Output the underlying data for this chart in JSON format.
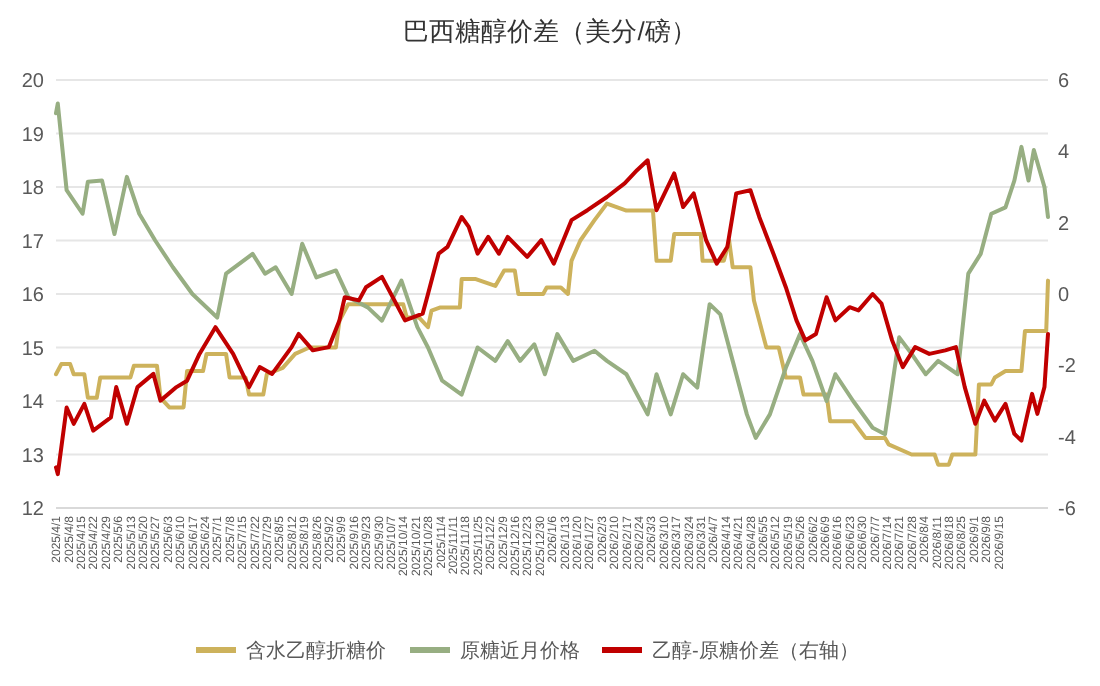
{
  "chart_data": {
    "type": "line",
    "title": "巴西糖醇价差（美分/磅）",
    "legend": "bottom",
    "grid": "y",
    "xlim": [
      "2025-04-01",
      "2026-10-13"
    ],
    "xticks": [
      {
        "value": "2025-04-01",
        "label": "2025/4/1"
      },
      {
        "value": "2025-04-08",
        "label": "2025/4/8"
      },
      {
        "value": "2025-04-15",
        "label": "2025/4/15"
      },
      {
        "value": "2025-04-22",
        "label": "2025/4/22"
      },
      {
        "value": "2025-04-29",
        "label": "2025/4/29"
      },
      {
        "value": "2025-05-06",
        "label": "2025/5/6"
      },
      {
        "value": "2025-05-13",
        "label": "2025/5/13"
      },
      {
        "value": "2025-05-20",
        "label": "2025/5/20"
      },
      {
        "value": "2025-05-27",
        "label": "2025/5/27"
      },
      {
        "value": "2025-06-03",
        "label": "2025/6/3"
      },
      {
        "value": "2025-06-10",
        "label": "2025/6/10"
      },
      {
        "value": "2025-06-17",
        "label": "2025/6/17"
      },
      {
        "value": "2025-06-24",
        "label": "2025/6/24"
      },
      {
        "value": "2025-07-01",
        "label": "2025/7/1"
      },
      {
        "value": "2025-07-08",
        "label": "2025/7/8"
      },
      {
        "value": "2025-07-15",
        "label": "2025/7/15"
      },
      {
        "value": "2025-07-22",
        "label": "2025/7/22"
      },
      {
        "value": "2025-07-29",
        "label": "2025/7/29"
      },
      {
        "value": "2025-08-05",
        "label": "2025/8/5"
      },
      {
        "value": "2025-08-12",
        "label": "2025/8/12"
      },
      {
        "value": "2025-08-19",
        "label": "2025/8/19"
      },
      {
        "value": "2025-08-26",
        "label": "2025/8/26"
      },
      {
        "value": "2025-09-02",
        "label": "2025/9/2"
      },
      {
        "value": "2025-09-09",
        "label": "2025/9/9"
      },
      {
        "value": "2025-09-16",
        "label": "2025/9/16"
      },
      {
        "value": "2025-09-23",
        "label": "2025/9/23"
      },
      {
        "value": "2025-09-30",
        "label": "2025/9/30"
      },
      {
        "value": "2025-10-07",
        "label": "2025/10/7"
      },
      {
        "value": "2025-10-14",
        "label": "2025/10/14"
      },
      {
        "value": "2025-10-21",
        "label": "2025/10/21"
      },
      {
        "value": "2025-10-28",
        "label": "2025/10/28"
      },
      {
        "value": "2025-11-04",
        "label": "2025/11/4"
      },
      {
        "value": "2025-11-11",
        "label": "2025/11/11"
      },
      {
        "value": "2025-11-18",
        "label": "2025/11/18"
      },
      {
        "value": "2025-11-25",
        "label": "2025/11/25"
      },
      {
        "value": "2025-12-02",
        "label": "2025/12/2"
      },
      {
        "value": "2025-12-09",
        "label": "2025/12/9"
      },
      {
        "value": "2025-12-16",
        "label": "2025/12/16"
      },
      {
        "value": "2025-12-23",
        "label": "2025/12/23"
      },
      {
        "value": "2025-12-30",
        "label": "2025/12/30"
      },
      {
        "value": "2026-01-06",
        "label": "2026/1/6"
      },
      {
        "value": "2026-01-13",
        "label": "2026/1/13"
      },
      {
        "value": "2026-01-20",
        "label": "2026/1/20"
      },
      {
        "value": "2026-01-27",
        "label": "2026/1/27"
      },
      {
        "value": "2026-02-03",
        "label": "2026/2/3"
      },
      {
        "value": "2026-02-10",
        "label": "2026/2/10"
      },
      {
        "value": "2026-02-17",
        "label": "2026/2/17"
      },
      {
        "value": "2026-02-24",
        "label": "2026/2/24"
      },
      {
        "value": "2026-03-03",
        "label": "2026/3/3"
      },
      {
        "value": "2026-03-10",
        "label": "2026/3/10"
      },
      {
        "value": "2026-03-17",
        "label": "2026/3/17"
      },
      {
        "value": "2026-03-24",
        "label": "2026/3/24"
      },
      {
        "value": "2026-03-31",
        "label": "2026/3/31"
      },
      {
        "value": "2026-04-07",
        "label": "2026/4/7"
      },
      {
        "value": "2026-04-14",
        "label": "2026/4/14"
      },
      {
        "value": "2026-04-21",
        "label": "2026/4/21"
      },
      {
        "value": "2026-04-28",
        "label": "2026/4/28"
      },
      {
        "value": "2026-05-05",
        "label": "2026/5/5"
      },
      {
        "value": "2026-05-12",
        "label": "2026/5/12"
      },
      {
        "value": "2026-05-19",
        "label": "2026/5/19"
      },
      {
        "value": "2026-05-26",
        "label": "2026/5/26"
      },
      {
        "value": "2026-06-02",
        "label": "2026/6/2"
      },
      {
        "value": "2026-06-09",
        "label": "2026/6/9"
      },
      {
        "value": "2026-06-16",
        "label": "2026/6/16"
      },
      {
        "value": "2026-06-23",
        "label": "2026/6/23"
      },
      {
        "value": "2026-06-30",
        "label": "2026/6/30"
      },
      {
        "value": "2026-07-07",
        "label": "2026/7/7"
      },
      {
        "value": "2026-07-14",
        "label": "2026/7/14"
      },
      {
        "value": "2026-07-21",
        "label": "2026/7/21"
      },
      {
        "value": "2026-07-28",
        "label": "2026/7/28"
      },
      {
        "value": "2026-08-04",
        "label": "2026/8/4"
      },
      {
        "value": "2026-08-11",
        "label": "2026/8/11"
      },
      {
        "value": "2026-08-18",
        "label": "2026/8/18"
      },
      {
        "value": "2026-08-25",
        "label": "2026/8/25"
      },
      {
        "value": "2026-09-01",
        "label": "2026/9/1"
      },
      {
        "value": "2026-09-08",
        "label": "2026/9/8"
      },
      {
        "value": "2026-09-15",
        "label": "2026/9/15"
      }
    ],
    "ylim": [
      12,
      20
    ],
    "yticks": [
      12,
      13,
      14,
      15,
      16,
      17,
      18,
      19,
      20
    ],
    "y2lim": [
      -6,
      6
    ],
    "y2ticks": [
      -6,
      -4,
      -2,
      0,
      2,
      4,
      6
    ],
    "series": [
      {
        "name": "含水乙醇折糖价",
        "color": "#cdb25c",
        "x": [
          "2025-04-01",
          "2025-04-04",
          "2025-04-09",
          "2025-04-11",
          "2025-04-17",
          "2025-04-19",
          "2025-04-24",
          "2025-04-26",
          "2025-05-13",
          "2025-05-15",
          "2025-05-28",
          "2025-05-30",
          "2025-06-04",
          "2025-06-12",
          "2025-06-14",
          "2025-06-23",
          "2025-06-25",
          "2025-07-06",
          "2025-07-08",
          "2025-07-17",
          "2025-07-19",
          "2025-07-27",
          "2025-07-29",
          "2025-08-07",
          "2025-08-14",
          "2025-08-22",
          "2025-09-06",
          "2025-09-08",
          "2025-09-13",
          "2025-10-14",
          "2025-10-16",
          "2025-10-23",
          "2025-10-28",
          "2025-10-30",
          "2025-11-04",
          "2025-11-15",
          "2025-11-16",
          "2025-11-24",
          "2025-12-05",
          "2025-12-10",
          "2025-12-16",
          "2025-12-18",
          "2026-01-01",
          "2026-01-03",
          "2026-01-11",
          "2026-01-15",
          "2026-01-17",
          "2026-01-22",
          "2026-01-30",
          "2026-02-06",
          "2026-02-17",
          "2026-03-04",
          "2026-03-06",
          "2026-03-14",
          "2026-03-16",
          "2026-03-31",
          "2026-04-01",
          "2026-04-13",
          "2026-04-16",
          "2026-04-18",
          "2026-04-28",
          "2026-04-30",
          "2026-05-07",
          "2026-05-14",
          "2026-05-18",
          "2026-05-26",
          "2026-05-28",
          "2026-06-10",
          "2026-06-12",
          "2026-06-25",
          "2026-07-02",
          "2026-07-13",
          "2026-07-15",
          "2026-07-28",
          "2026-08-10",
          "2026-08-12",
          "2026-08-18",
          "2026-08-20",
          "2026-09-02",
          "2026-09-04",
          "2026-09-11",
          "2026-09-13",
          "2026-09-19",
          "2026-09-28",
          "2026-09-30",
          "2026-10-12",
          "2026-10-13"
        ],
        "values": [
          14.5,
          14.69,
          14.69,
          14.5,
          14.5,
          14.06,
          14.06,
          14.44,
          14.44,
          14.66,
          14.66,
          14.06,
          13.88,
          13.88,
          14.56,
          14.56,
          14.88,
          14.88,
          14.44,
          14.44,
          14.12,
          14.12,
          14.5,
          14.62,
          14.88,
          15.0,
          15.0,
          15.5,
          15.81,
          15.81,
          15.56,
          15.56,
          15.38,
          15.69,
          15.75,
          15.75,
          16.28,
          16.28,
          16.15,
          16.44,
          16.44,
          16.0,
          16.0,
          16.12,
          16.12,
          16.0,
          16.62,
          17.0,
          17.38,
          17.69,
          17.56,
          17.56,
          16.62,
          16.62,
          17.12,
          17.12,
          16.62,
          16.62,
          17.0,
          16.5,
          16.5,
          15.88,
          15.0,
          15.0,
          14.44,
          14.44,
          14.12,
          14.12,
          13.62,
          13.62,
          13.31,
          13.31,
          13.19,
          13.0,
          13.0,
          12.81,
          12.81,
          13.0,
          13.0,
          14.31,
          14.31,
          14.44,
          14.56,
          14.56,
          15.31,
          15.31,
          16.25
        ]
      },
      {
        "name": "原糖近月价格",
        "color": "#97ae82",
        "x": [
          "2025-04-01",
          "2025-04-02",
          "2025-04-07",
          "2025-04-16",
          "2025-04-19",
          "2025-04-27",
          "2025-05-04",
          "2025-05-11",
          "2025-05-18",
          "2025-05-27",
          "2025-06-06",
          "2025-06-17",
          "2025-07-01",
          "2025-07-06",
          "2025-07-21",
          "2025-07-28",
          "2025-08-03",
          "2025-08-12",
          "2025-08-18",
          "2025-08-26",
          "2025-09-06",
          "2025-09-13",
          "2025-09-24",
          "2025-10-02",
          "2025-10-13",
          "2025-10-22",
          "2025-10-28",
          "2025-11-05",
          "2025-11-16",
          "2025-11-25",
          "2025-12-05",
          "2025-12-12",
          "2025-12-19",
          "2025-12-27",
          "2026-01-02",
          "2026-01-09",
          "2026-01-18",
          "2026-01-30",
          "2026-02-06",
          "2026-02-17",
          "2026-03-01",
          "2026-03-06",
          "2026-03-14",
          "2026-03-21",
          "2026-03-29",
          "2026-04-05",
          "2026-04-11",
          "2026-04-18",
          "2026-04-26",
          "2026-05-01",
          "2026-05-09",
          "2026-05-18",
          "2026-05-26",
          "2026-06-02",
          "2026-06-10",
          "2026-06-15",
          "2026-06-25",
          "2026-07-06",
          "2026-07-13",
          "2026-07-21",
          "2026-07-28",
          "2026-08-05",
          "2026-08-12",
          "2026-08-23",
          "2026-08-29",
          "2026-09-05",
          "2026-09-11",
          "2026-09-19",
          "2026-09-24",
          "2026-09-28",
          "2026-10-02",
          "2026-10-05",
          "2026-10-11",
          "2026-10-13"
        ],
        "values": [
          19.38,
          19.56,
          17.94,
          17.5,
          18.1,
          18.12,
          17.12,
          18.19,
          17.5,
          17.0,
          16.5,
          16.0,
          15.56,
          16.38,
          16.75,
          16.38,
          16.5,
          16.0,
          16.94,
          16.31,
          16.44,
          15.94,
          15.75,
          15.5,
          16.25,
          15.38,
          15.0,
          14.38,
          14.12,
          15.0,
          14.75,
          15.12,
          14.75,
          15.06,
          14.5,
          15.25,
          14.75,
          14.94,
          14.75,
          14.5,
          13.75,
          14.5,
          13.75,
          14.5,
          14.25,
          15.81,
          15.62,
          14.75,
          13.75,
          13.31,
          13.75,
          14.62,
          15.25,
          14.75,
          14.0,
          14.5,
          14.0,
          13.5,
          13.38,
          15.19,
          14.88,
          14.5,
          14.75,
          14.5,
          16.38,
          16.75,
          17.5,
          17.62,
          18.12,
          18.75,
          18.12,
          18.69,
          18.0,
          17.44
        ]
      },
      {
        "name": "乙醇-原糖价差（右轴）",
        "color": "#c00000",
        "axis": "y2",
        "x": [
          "2025-04-01",
          "2025-04-02",
          "2025-04-07",
          "2025-04-11",
          "2025-04-17",
          "2025-04-22",
          "2025-05-02",
          "2025-05-05",
          "2025-05-11",
          "2025-05-17",
          "2025-05-26",
          "2025-05-30",
          "2025-06-08",
          "2025-06-14",
          "2025-06-21",
          "2025-06-30",
          "2025-07-10",
          "2025-07-19",
          "2025-07-25",
          "2025-08-01",
          "2025-08-12",
          "2025-08-16",
          "2025-08-24",
          "2025-09-02",
          "2025-09-08",
          "2025-09-11",
          "2025-09-19",
          "2025-09-23",
          "2025-10-02",
          "2025-10-10",
          "2025-10-15",
          "2025-10-25",
          "2025-10-28",
          "2025-11-03",
          "2025-11-08",
          "2025-11-16",
          "2025-11-20",
          "2025-11-25",
          "2025-12-01",
          "2025-12-07",
          "2025-12-12",
          "2025-12-23",
          "2025-12-31",
          "2026-01-07",
          "2026-01-17",
          "2026-01-26",
          "2026-02-06",
          "2026-02-16",
          "2026-02-23",
          "2026-03-01",
          "2026-03-06",
          "2026-03-16",
          "2026-03-21",
          "2026-03-27",
          "2026-04-03",
          "2026-04-09",
          "2026-04-15",
          "2026-04-20",
          "2026-04-28",
          "2026-05-03",
          "2026-05-11",
          "2026-05-18",
          "2026-05-24",
          "2026-05-29",
          "2026-06-04",
          "2026-06-10",
          "2026-06-15",
          "2026-06-23",
          "2026-06-28",
          "2026-07-06",
          "2026-07-11",
          "2026-07-17",
          "2026-07-23",
          "2026-07-30",
          "2026-08-07",
          "2026-08-16",
          "2026-08-22",
          "2026-08-27",
          "2026-09-02",
          "2026-09-07",
          "2026-09-13",
          "2026-09-19",
          "2026-09-24",
          "2026-09-28",
          "2026-10-04",
          "2026-10-07",
          "2026-10-11",
          "2026-10-13"
        ],
        "values": [
          -4.86,
          -5.05,
          -3.18,
          -3.64,
          -3.08,
          -3.83,
          -3.46,
          -2.61,
          -3.64,
          -2.61,
          -2.24,
          -2.99,
          -2.61,
          -2.43,
          -1.68,
          -0.93,
          -1.68,
          -2.61,
          -2.05,
          -2.24,
          -1.49,
          -1.12,
          -1.58,
          -1.49,
          -0.74,
          -0.09,
          -0.18,
          0.19,
          0.48,
          -0.27,
          -0.74,
          -0.55,
          0.0,
          1.13,
          1.32,
          2.16,
          1.88,
          1.13,
          1.6,
          1.13,
          1.6,
          1.04,
          1.51,
          0.85,
          2.07,
          2.35,
          2.72,
          3.1,
          3.47,
          3.75,
          2.35,
          3.38,
          2.44,
          2.82,
          1.51,
          0.85,
          1.32,
          2.82,
          2.91,
          2.16,
          1.13,
          0.19,
          -0.74,
          -1.3,
          -1.12,
          -0.09,
          -0.74,
          -0.37,
          -0.46,
          0.0,
          -0.27,
          -1.3,
          -2.05,
          -1.49,
          -1.68,
          -1.58,
          -1.49,
          -2.61,
          -3.64,
          -2.99,
          -3.55,
          -3.08,
          -3.92,
          -4.11,
          -2.8,
          -3.36,
          -2.61,
          -1.12
        ]
      }
    ]
  }
}
